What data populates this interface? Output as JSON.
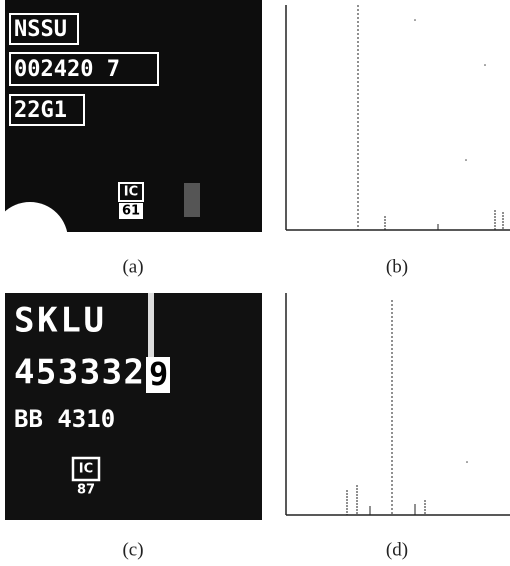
{
  "panels": [
    {
      "label": "(a)",
      "lines": [
        "NSSU",
        "002420 7",
        "22G1"
      ],
      "badge": [
        "IC",
        "61"
      ]
    },
    {
      "label": "(b)"
    },
    {
      "label": "(c)",
      "lines": [
        "SKLU",
        "453332",
        "9",
        "BB 4310"
      ],
      "badge": [
        "IC",
        "87"
      ]
    },
    {
      "label": "(d)"
    }
  ]
}
